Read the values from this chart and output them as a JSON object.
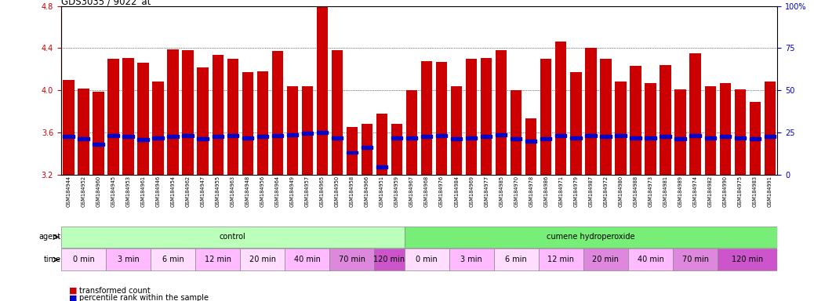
{
  "title": "GDS3035 / 9022_at",
  "samples": [
    "GSM184944",
    "GSM184952",
    "GSM184960",
    "GSM184945",
    "GSM184953",
    "GSM184961",
    "GSM184946",
    "GSM184954",
    "GSM184962",
    "GSM184947",
    "GSM184955",
    "GSM184963",
    "GSM184948",
    "GSM184956",
    "GSM184964",
    "GSM184949",
    "GSM184957",
    "GSM184965",
    "GSM184950",
    "GSM184958",
    "GSM184966",
    "GSM184951",
    "GSM184959",
    "GSM184967",
    "GSM184968",
    "GSM184976",
    "GSM184984",
    "GSM184969",
    "GSM184977",
    "GSM184985",
    "GSM184970",
    "GSM184978",
    "GSM184986",
    "GSM184971",
    "GSM184979",
    "GSM184987",
    "GSM184972",
    "GSM184980",
    "GSM184988",
    "GSM184973",
    "GSM184981",
    "GSM184989",
    "GSM184974",
    "GSM184982",
    "GSM184990",
    "GSM184975",
    "GSM184983",
    "GSM184991"
  ],
  "bar_values": [
    4.1,
    4.02,
    3.99,
    4.3,
    4.31,
    4.26,
    4.08,
    4.39,
    4.38,
    4.22,
    4.34,
    4.3,
    4.17,
    4.18,
    4.37,
    4.04,
    4.04,
    4.79,
    4.38,
    3.65,
    3.68,
    3.78,
    3.68,
    4.0,
    4.28,
    4.27,
    4.04,
    4.3,
    4.31,
    4.38,
    4.0,
    3.73,
    4.3,
    4.46,
    4.17,
    4.4,
    4.3,
    4.08,
    4.23,
    4.07,
    4.24,
    4.01,
    4.35,
    4.04,
    4.07,
    4.01,
    3.89,
    4.08
  ],
  "percentile_values": [
    3.56,
    3.54,
    3.49,
    3.57,
    3.56,
    3.53,
    3.55,
    3.56,
    3.57,
    3.54,
    3.56,
    3.57,
    3.55,
    3.56,
    3.57,
    3.58,
    3.59,
    3.6,
    3.55,
    3.41,
    3.46,
    3.27,
    3.55,
    3.55,
    3.56,
    3.57,
    3.54,
    3.55,
    3.56,
    3.58,
    3.54,
    3.52,
    3.54,
    3.57,
    3.55,
    3.57,
    3.56,
    3.57,
    3.55,
    3.55,
    3.56,
    3.54,
    3.57,
    3.55,
    3.56,
    3.55,
    3.54,
    3.56
  ],
  "ylim": [
    3.2,
    4.8
  ],
  "yticks": [
    3.2,
    3.6,
    4.0,
    4.4,
    4.8
  ],
  "right_ylim": [
    0,
    100
  ],
  "right_yticks": [
    0,
    25,
    50,
    75,
    100
  ],
  "bar_color": "#cc0000",
  "dot_color": "#0000cc",
  "bar_bottom": 3.2,
  "agent_groups": [
    {
      "label": "control",
      "start": 0,
      "end": 23,
      "color": "#bbffbb"
    },
    {
      "label": "cumene hydroperoxide",
      "start": 23,
      "end": 48,
      "color": "#77ee77"
    }
  ],
  "time_groups": [
    {
      "label": "0 min",
      "start": 0,
      "end": 3,
      "color": "#ffddff"
    },
    {
      "label": "3 min",
      "start": 3,
      "end": 6,
      "color": "#ffbbff"
    },
    {
      "label": "6 min",
      "start": 6,
      "end": 9,
      "color": "#ffddff"
    },
    {
      "label": "12 min",
      "start": 9,
      "end": 12,
      "color": "#ffbbff"
    },
    {
      "label": "20 min",
      "start": 12,
      "end": 15,
      "color": "#ffddff"
    },
    {
      "label": "40 min",
      "start": 15,
      "end": 18,
      "color": "#ffbbff"
    },
    {
      "label": "70 min",
      "start": 18,
      "end": 21,
      "color": "#dd88dd"
    },
    {
      "label": "120 min",
      "start": 21,
      "end": 23,
      "color": "#cc55cc"
    },
    {
      "label": "0 min",
      "start": 23,
      "end": 26,
      "color": "#ffddff"
    },
    {
      "label": "3 min",
      "start": 26,
      "end": 29,
      "color": "#ffbbff"
    },
    {
      "label": "6 min",
      "start": 29,
      "end": 32,
      "color": "#ffddff"
    },
    {
      "label": "12 min",
      "start": 32,
      "end": 35,
      "color": "#ffbbff"
    },
    {
      "label": "20 min",
      "start": 35,
      "end": 38,
      "color": "#dd88dd"
    },
    {
      "label": "40 min",
      "start": 38,
      "end": 41,
      "color": "#ffbbff"
    },
    {
      "label": "70 min",
      "start": 41,
      "end": 44,
      "color": "#dd88dd"
    },
    {
      "label": "120 min",
      "start": 44,
      "end": 48,
      "color": "#cc55cc"
    }
  ],
  "background_color": "#ffffff",
  "plot_bg_color": "#ffffff",
  "grid_color": "#000000",
  "left_label_color": "#cc0000",
  "right_label_color": "#0000cc"
}
